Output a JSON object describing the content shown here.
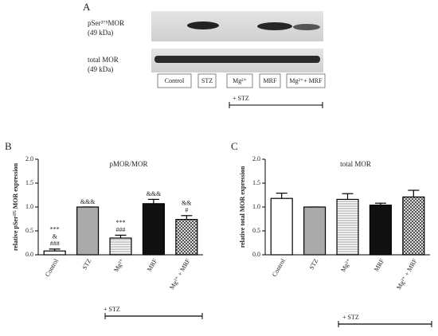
{
  "panel_a": {
    "label": "A",
    "rows": [
      {
        "label": "pSer³⁷⁵MOR",
        "kda": "(49 kDa)"
      },
      {
        "label": "total MOR",
        "kda": "(49 kDa)"
      }
    ],
    "lanes": [
      "Control",
      "STZ",
      "Mg²⁺",
      "MRF",
      "Mg²⁺+ MRF"
    ],
    "treatment": "+ STZ"
  },
  "chart_data": [
    {
      "type": "bar",
      "panel": "B",
      "title": "pMOR/MOR",
      "y_label": "relative pSer³⁷⁵ MOR expression",
      "categories": [
        "Control",
        "STZ",
        "Mg²⁺",
        "MRF",
        "Mg²⁺ + MRF"
      ],
      "values": [
        0.08,
        1.0,
        0.35,
        1.07,
        0.74
      ],
      "errors": [
        0.04,
        0,
        0.06,
        0.09,
        0.08
      ],
      "patterns": [
        "white",
        "gray",
        "hstripes",
        "black",
        "crosshatch"
      ],
      "annotations": [
        [
          "***",
          "&",
          "###"
        ],
        [
          "&&&"
        ],
        [
          "***",
          "###"
        ],
        [
          "&&&"
        ],
        [
          "&&",
          "#"
        ]
      ],
      "ylim": [
        0,
        2
      ],
      "yticks": [
        {
          "value": 0,
          "label": "0.0"
        },
        {
          "value": 0.5,
          "label": "0.5"
        },
        {
          "value": 1,
          "label": "1.0"
        },
        {
          "value": 1.5,
          "label": "1.5"
        },
        {
          "value": 2,
          "label": "2.0"
        }
      ],
      "treatment": "+ STZ"
    },
    {
      "type": "bar",
      "panel": "C",
      "title": "total MOR",
      "y_label": "relative total MOR expression",
      "categories": [
        "Control",
        "STZ",
        "Mg²⁺",
        "MRF",
        "Mg²⁺ + MRF"
      ],
      "values": [
        1.18,
        1.0,
        1.16,
        1.04,
        1.21
      ],
      "errors": [
        0.11,
        0,
        0.12,
        0.04,
        0.14
      ],
      "patterns": [
        "white",
        "gray",
        "hstripes",
        "black",
        "crosshatch"
      ],
      "ylim": [
        0,
        2
      ],
      "yticks": [
        {
          "value": 0,
          "label": "0.0"
        },
        {
          "value": 0.5,
          "label": "0.5"
        },
        {
          "value": 1,
          "label": "1.0"
        },
        {
          "value": 1.5,
          "label": "1.5"
        },
        {
          "value": 2,
          "label": "2.0"
        }
      ],
      "treatment": "+ STZ"
    }
  ]
}
